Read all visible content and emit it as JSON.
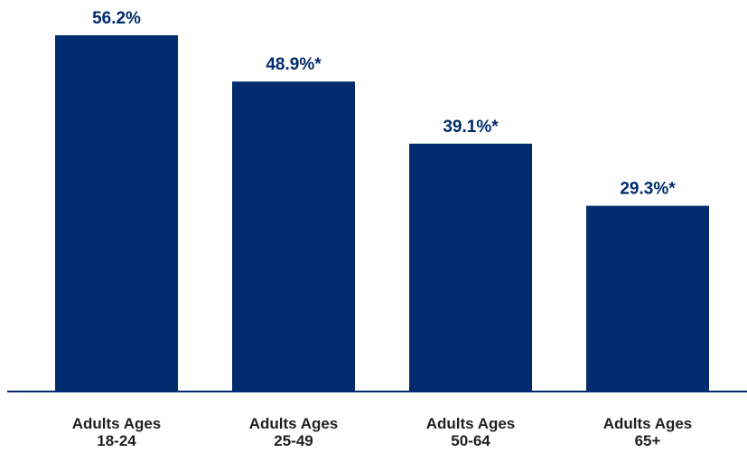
{
  "colors": {
    "bar": "#002b6e",
    "label": "#002b6e",
    "axis": "#002b6e",
    "category_text": "#1f1f1f"
  },
  "chart_data": {
    "type": "bar",
    "categories": [
      [
        "Adults Ages",
        "18-24"
      ],
      [
        "Adults Ages",
        "25-49"
      ],
      [
        "Adults Ages",
        "50-64"
      ],
      [
        "Adults Ages",
        "65+"
      ]
    ],
    "values": [
      56.2,
      48.9,
      39.1,
      29.3
    ],
    "value_labels": [
      "56.2%",
      "48.9%*",
      "39.1%*",
      "29.3%*"
    ],
    "ylim": [
      0,
      60
    ],
    "grid": false,
    "legend": "none"
  }
}
